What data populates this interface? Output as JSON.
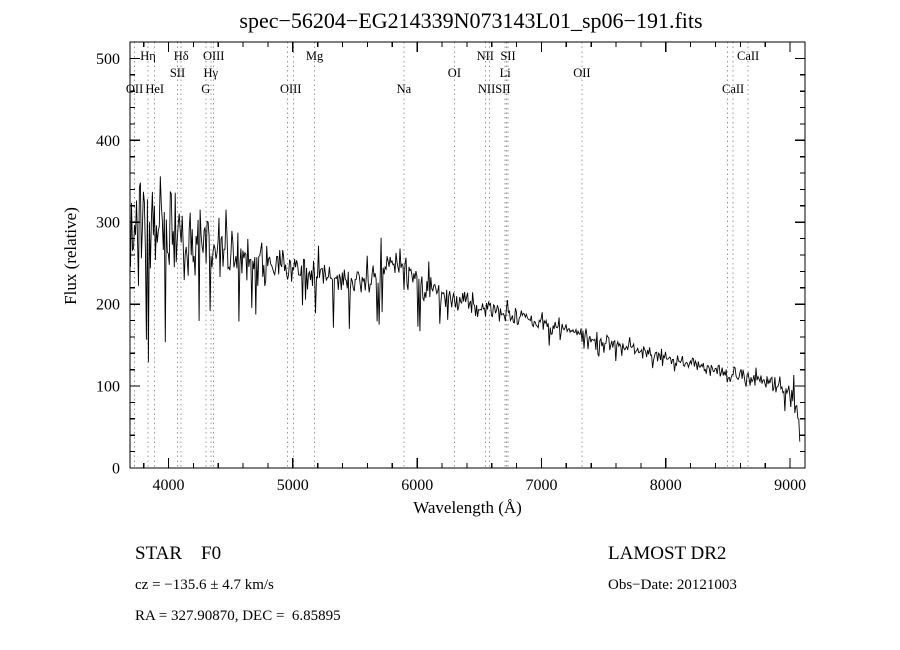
{
  "title": "spec−56204−EG214339N073143L01_sp06−191.fits",
  "footer": {
    "object_type": "STAR    F0",
    "survey": "LAMOST DR2",
    "cz": "cz = −135.6 ± 4.7 km/s",
    "obs_date": "Obs−Date: 20121003",
    "coords": "RA = 327.90870, DEC =  6.85895"
  },
  "chart_data": {
    "type": "line",
    "title": "spec−56204−EG214339N073143L01_sp06−191.fits",
    "xlabel": "Wavelength (Å)",
    "ylabel": "Flux (relative)",
    "xlim": [
      3690,
      9120
    ],
    "ylim": [
      0,
      520
    ],
    "xticks": [
      4000,
      5000,
      6000,
      7000,
      8000,
      9000
    ],
    "yticks": [
      0,
      100,
      200,
      300,
      400,
      500
    ],
    "x_minor_step": 200,
    "y_minor_step": 20,
    "line_color": "#000000",
    "grid": false,
    "legend": "none",
    "continuum": [
      [
        3690,
        300
      ],
      [
        3760,
        292
      ],
      [
        3850,
        287
      ],
      [
        3950,
        282
      ],
      [
        4050,
        277
      ],
      [
        4150,
        273
      ],
      [
        4250,
        270
      ],
      [
        4350,
        267
      ],
      [
        4450,
        262
      ],
      [
        4550,
        257
      ],
      [
        4700,
        250
      ],
      [
        4850,
        245
      ],
      [
        5000,
        241
      ],
      [
        5150,
        236
      ],
      [
        5300,
        230
      ],
      [
        5450,
        226
      ],
      [
        5600,
        227
      ],
      [
        5750,
        238
      ],
      [
        5840,
        256
      ],
      [
        5900,
        248
      ],
      [
        6000,
        224
      ],
      [
        6150,
        215
      ],
      [
        6300,
        206
      ],
      [
        6450,
        200
      ],
      [
        6600,
        194
      ],
      [
        6750,
        188
      ],
      [
        6900,
        181
      ],
      [
        7050,
        175
      ],
      [
        7200,
        168
      ],
      [
        7350,
        161
      ],
      [
        7500,
        155
      ],
      [
        7650,
        148
      ],
      [
        7800,
        142
      ],
      [
        7950,
        137
      ],
      [
        8100,
        131
      ],
      [
        8250,
        125
      ],
      [
        8400,
        119
      ],
      [
        8550,
        114
      ],
      [
        8700,
        108
      ],
      [
        8850,
        103
      ],
      [
        8980,
        96
      ],
      [
        9040,
        86
      ],
      [
        9070,
        55
      ],
      [
        9085,
        6
      ]
    ],
    "noise_profile": [
      [
        3690,
        115
      ],
      [
        3760,
        105
      ],
      [
        3850,
        92
      ],
      [
        3950,
        82
      ],
      [
        4050,
        68
      ],
      [
        4150,
        58
      ],
      [
        4250,
        50
      ],
      [
        4350,
        45
      ],
      [
        4500,
        38
      ],
      [
        4700,
        31
      ],
      [
        5000,
        26
      ],
      [
        5300,
        24
      ],
      [
        5600,
        22
      ],
      [
        5850,
        26
      ],
      [
        6100,
        19
      ],
      [
        6300,
        16
      ],
      [
        6600,
        14
      ],
      [
        6900,
        12
      ],
      [
        7200,
        11
      ],
      [
        7600,
        10
      ],
      [
        8000,
        10
      ],
      [
        8500,
        10
      ],
      [
        9000,
        11
      ],
      [
        9085,
        11
      ]
    ],
    "noise_seed": 77,
    "sample_step": 8,
    "spike_down_prob": 0.06,
    "spike_down_scale": 1.6,
    "spike_up_prob": 0.015,
    "spike_up_scale": 1.2,
    "dotted_lines": [
      3727,
      3835,
      3889,
      4072,
      4102,
      4300,
      4340,
      4363,
      4959,
      5007,
      5175,
      5893,
      6300,
      6548,
      6583,
      6708,
      6717,
      6731,
      7325,
      8498,
      8542,
      8662
    ],
    "spectral_lines": [
      {
        "label": "Hη",
        "wavelength": 3835,
        "row": 0
      },
      {
        "label": "Hδ",
        "wavelength": 4102,
        "row": 0
      },
      {
        "label": "OIII",
        "wavelength": 4363,
        "row": 0
      },
      {
        "label": "Mg",
        "wavelength": 5175,
        "row": 0
      },
      {
        "label": "NII",
        "wavelength": 6548,
        "row": 0
      },
      {
        "label": "SII",
        "wavelength": 6731,
        "row": 0
      },
      {
        "label": "CaII",
        "wavelength": 8662,
        "row": 0
      },
      {
        "label": "SII",
        "wavelength": 4072,
        "row": 1
      },
      {
        "label": "Hγ",
        "wavelength": 4340,
        "row": 1
      },
      {
        "label": "OI",
        "wavelength": 6300,
        "row": 1
      },
      {
        "label": "Li",
        "wavelength": 6708,
        "row": 1
      },
      {
        "label": "OII",
        "wavelength": 7325,
        "row": 1
      },
      {
        "label": "OII",
        "wavelength": 3727,
        "row": 2
      },
      {
        "label": "HeI",
        "wavelength": 3889,
        "row": 2
      },
      {
        "label": "G",
        "wavelength": 4300,
        "row": 2
      },
      {
        "label": "OIII",
        "wavelength": 4983,
        "row": 2
      },
      {
        "label": "Na",
        "wavelength": 5893,
        "row": 2
      },
      {
        "label": "NIISII",
        "wavelength": 6620,
        "row": 2
      },
      {
        "label": "CaII",
        "wavelength": 8542,
        "row": 2
      }
    ]
  }
}
